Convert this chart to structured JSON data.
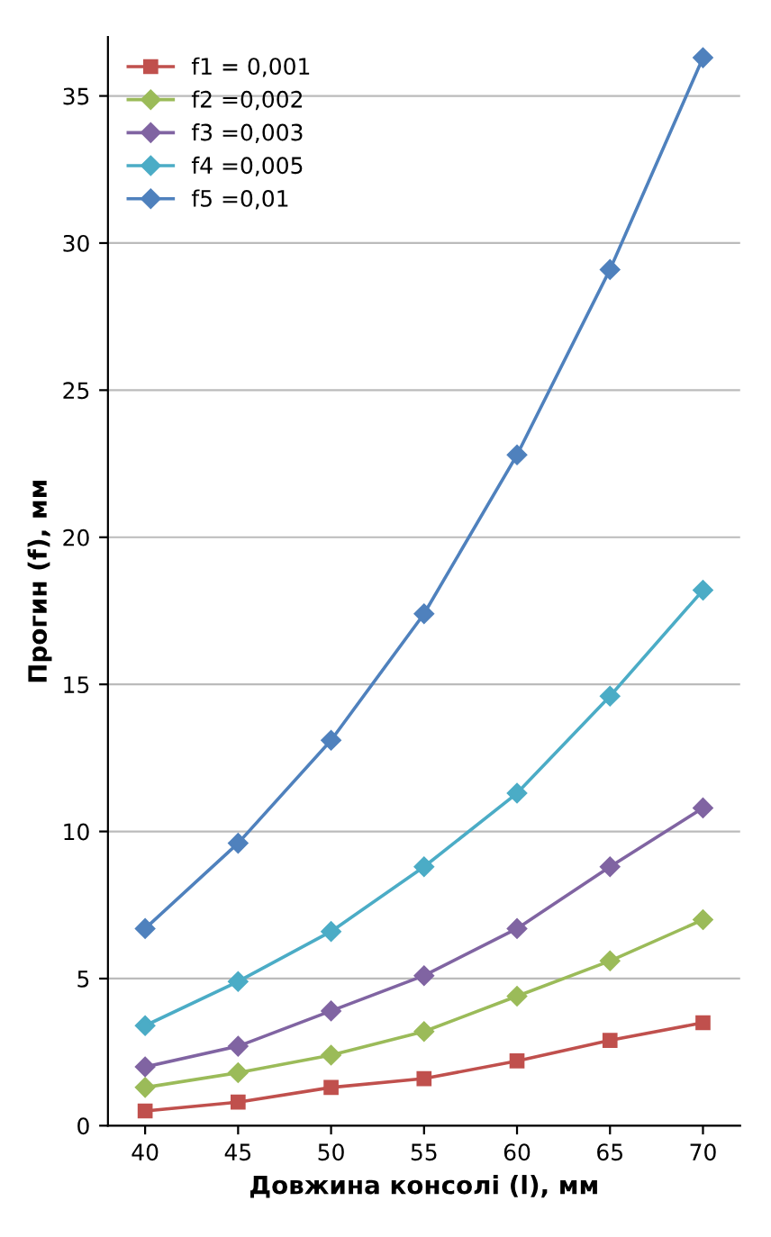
{
  "chart_data": {
    "type": "line",
    "xlabel": "Довжина консолі (l), мм",
    "ylabel": "Прогин (f), мм",
    "x": [
      40,
      45,
      50,
      55,
      60,
      65,
      70
    ],
    "xlim": [
      38,
      72
    ],
    "xticks": [
      40,
      45,
      50,
      55,
      60,
      65,
      70
    ],
    "ylim": [
      0,
      37
    ],
    "yticks": [
      0,
      5,
      10,
      15,
      20,
      25,
      30,
      35
    ],
    "grid": "y",
    "legend": "top left",
    "series": [
      {
        "name": "f1 = 0,001",
        "color": "#c0504d",
        "marker": "square",
        "values": [
          0.5,
          0.8,
          1.3,
          1.6,
          2.2,
          2.9,
          3.5
        ]
      },
      {
        "name": "f2 =0,002",
        "color": "#9bbb59",
        "marker": "diamond",
        "values": [
          1.3,
          1.8,
          2.4,
          3.2,
          4.4,
          5.6,
          7.0
        ]
      },
      {
        "name": "f3 =0,003",
        "color": "#8064a2",
        "marker": "diamond",
        "values": [
          2.0,
          2.7,
          3.9,
          5.1,
          6.7,
          8.8,
          10.8
        ]
      },
      {
        "name": "f4 =0,005",
        "color": "#4bacc6",
        "marker": "diamond",
        "values": [
          3.4,
          4.9,
          6.6,
          8.8,
          11.3,
          14.6,
          18.2
        ]
      },
      {
        "name": "f5 =0,01",
        "color": "#4f81bd",
        "marker": "diamond",
        "values": [
          6.7,
          9.6,
          13.1,
          17.4,
          22.8,
          29.1,
          36.3
        ]
      }
    ]
  }
}
